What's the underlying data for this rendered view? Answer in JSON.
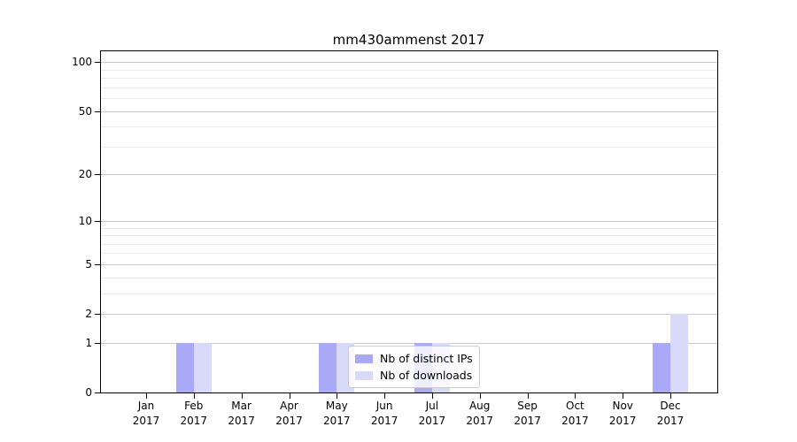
{
  "chart_data": {
    "type": "bar",
    "title": "mm430ammenst 2017",
    "categories": [
      {
        "label": "Jan",
        "year": "2017"
      },
      {
        "label": "Feb",
        "year": "2017"
      },
      {
        "label": "Mar",
        "year": "2017"
      },
      {
        "label": "Apr",
        "year": "2017"
      },
      {
        "label": "May",
        "year": "2017"
      },
      {
        "label": "Jun",
        "year": "2017"
      },
      {
        "label": "Jul",
        "year": "2017"
      },
      {
        "label": "Aug",
        "year": "2017"
      },
      {
        "label": "Sep",
        "year": "2017"
      },
      {
        "label": "Oct",
        "year": "2017"
      },
      {
        "label": "Nov",
        "year": "2017"
      },
      {
        "label": "Dec",
        "year": "2017"
      }
    ],
    "series": [
      {
        "name": "Nb of distinct IPs",
        "color": "#a9a9f7",
        "values": [
          0,
          1,
          0,
          0,
          1,
          0,
          1,
          0,
          0,
          0,
          0,
          1
        ]
      },
      {
        "name": "Nb of downloads",
        "color": "#d9d9f9",
        "values": [
          0,
          1,
          0,
          0,
          1,
          0,
          1,
          0,
          0,
          0,
          0,
          2
        ]
      }
    ],
    "y_axis": {
      "scale": "log1p",
      "major_ticks": [
        {
          "label": "0",
          "value": 0
        },
        {
          "label": "1",
          "value": 1
        },
        {
          "label": "2",
          "value": 2
        },
        {
          "label": "5",
          "value": 5
        },
        {
          "label": "10",
          "value": 10
        },
        {
          "label": "20",
          "value": 20
        },
        {
          "label": "50",
          "value": 50
        },
        {
          "label": "100",
          "value": 100
        }
      ],
      "minor_ticks": [
        3,
        4,
        6,
        7,
        8,
        9,
        30,
        40,
        60,
        70,
        80,
        90
      ],
      "ylim": [
        0,
        118
      ]
    },
    "grid": {
      "major_color": "#c9c9c9",
      "minor_color": "#ececec",
      "grid_on": true
    },
    "legend": {
      "position": "lower center",
      "entries": [
        "Nb of distinct IPs",
        "Nb of downloads"
      ]
    }
  }
}
